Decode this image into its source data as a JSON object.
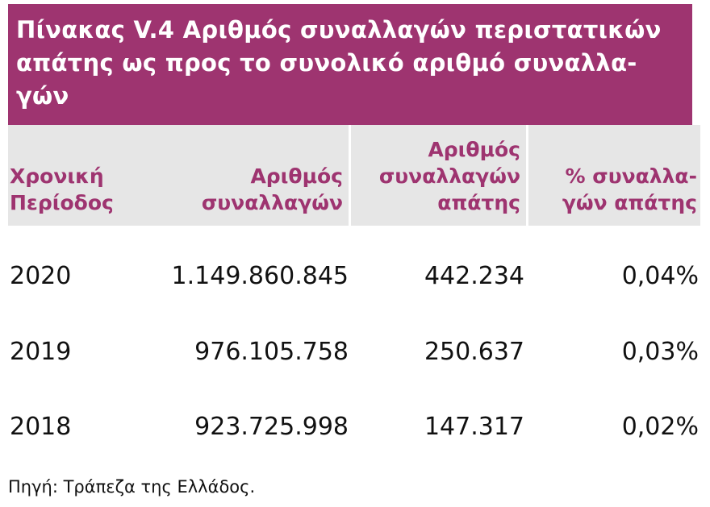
{
  "title_lines": [
    "Πίνακας V.4 Αριθμός συναλλαγών περιστατικών",
    "απάτης ως προς το συνολικό αριθμό συναλλα-",
    "γών"
  ],
  "table": {
    "header": [
      [
        "Χρονική",
        "Περίοδος"
      ],
      [
        "Αριθμός",
        "συναλλαγών"
      ],
      [
        "Αριθμός",
        "συναλλαγών",
        "απάτης"
      ],
      [
        "% συναλλα-",
        "γών απάτης"
      ]
    ],
    "rows": [
      [
        "2020",
        "1.149.860.845",
        "442.234",
        "0,04%"
      ],
      [
        "2019",
        "976.105.758",
        "250.637",
        "0,03%"
      ],
      [
        "2018",
        "923.725.998",
        "147.317",
        "0,02%"
      ]
    ]
  },
  "source": "Πηγή: Τράπεζα της Ελλάδος."
}
